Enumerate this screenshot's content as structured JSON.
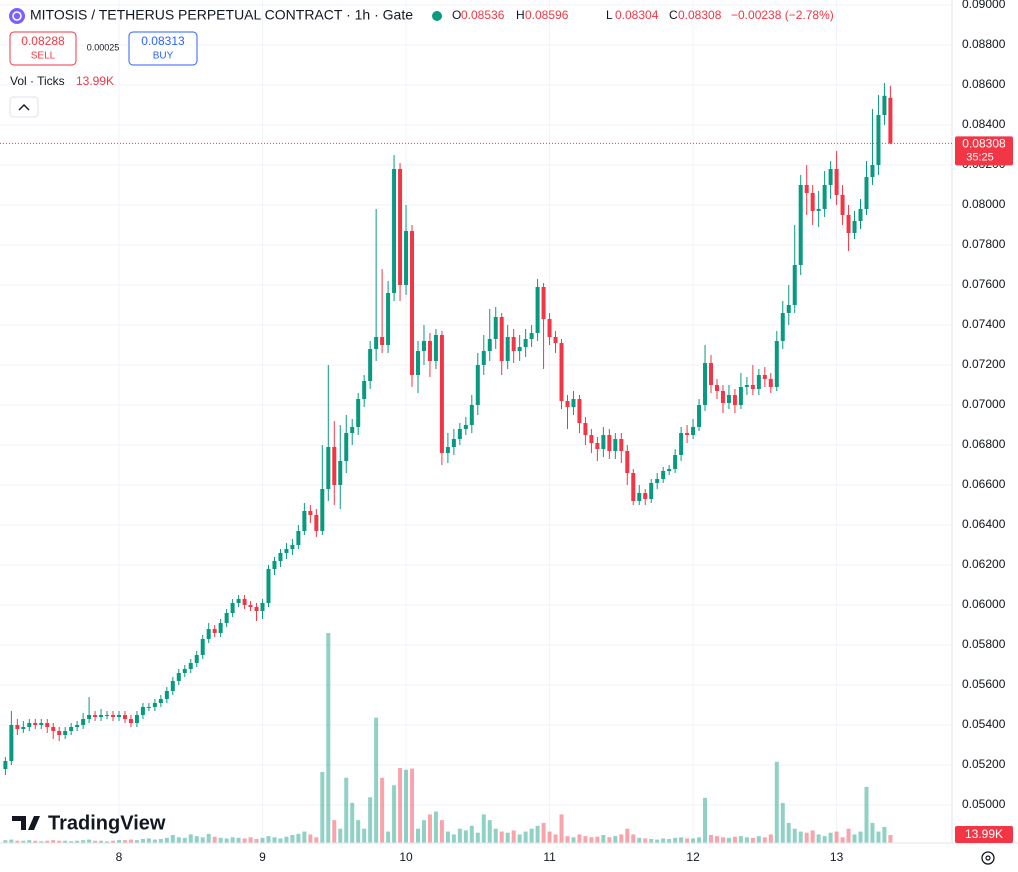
{
  "chart_data": {
    "type": "candlestick",
    "title": "MITOSIS / TETHERUS PERPETUAL CONTRACT · 1h · Gate",
    "ohlc_labels": [
      "O",
      "H",
      "L",
      "C"
    ],
    "change": "−0.00238 (−2.78%)",
    "sell": {
      "price": 0.08288,
      "label": "SELL"
    },
    "spread": 0.00025,
    "buy": {
      "price": 0.08313,
      "label": "BUY"
    },
    "indicator": "Vol · Ticks",
    "countdown": "35:25",
    "brand": "TradingView",
    "up_color": "#089981",
    "down_color": "#f23645",
    "grid": true,
    "x": [
      1,
      2,
      3,
      4,
      5,
      6,
      7,
      8,
      9,
      10,
      11,
      12,
      13,
      14,
      15,
      16,
      17,
      18,
      19,
      20,
      21,
      22,
      23,
      24,
      25,
      26,
      27,
      28,
      29,
      30,
      31,
      32,
      33,
      34,
      35,
      36,
      37,
      38,
      39,
      40,
      41,
      42,
      43,
      44,
      45,
      46,
      47,
      48,
      49,
      50,
      51,
      52,
      53,
      54,
      55,
      56,
      57,
      58,
      59,
      60,
      61,
      62,
      63,
      64,
      65,
      66,
      67,
      68,
      69,
      70,
      71,
      72,
      73,
      74,
      75,
      76,
      77,
      78,
      79,
      80,
      81,
      82,
      83,
      84,
      85,
      86,
      87,
      88,
      89,
      90,
      91,
      92,
      93,
      94,
      95,
      96,
      97,
      98,
      99,
      100,
      101,
      102,
      103,
      104,
      105,
      106,
      107,
      108,
      109,
      110,
      111,
      112,
      113,
      114,
      115,
      116,
      117,
      118,
      119,
      120,
      121,
      122,
      123,
      124,
      125,
      126,
      127,
      128,
      129,
      130,
      131,
      132,
      133,
      134,
      135,
      136,
      137,
      138,
      139,
      140,
      141,
      142,
      143,
      144,
      145,
      146,
      147,
      148,
      149
    ],
    "open": [
      0.0518,
      0.0522,
      0.054,
      0.0538,
      0.0539,
      0.0541,
      0.054,
      0.0541,
      0.0539,
      0.0537,
      0.0535,
      0.0537,
      0.0539,
      0.054,
      0.0543,
      0.0545,
      0.0544,
      0.0545,
      0.0545,
      0.0544,
      0.0545,
      0.0543,
      0.0541,
      0.0545,
      0.0549,
      0.0549,
      0.0551,
      0.0553,
      0.0557,
      0.0562,
      0.0566,
      0.0568,
      0.0571,
      0.0575,
      0.0583,
      0.0588,
      0.0586,
      0.0591,
      0.0596,
      0.0601,
      0.0603,
      0.06,
      0.0599,
      0.0597,
      0.0601,
      0.0618,
      0.0622,
      0.0626,
      0.0628,
      0.063,
      0.0637,
      0.0647,
      0.0645,
      0.0637,
      0.0658,
      0.0679,
      0.066,
      0.0672,
      0.0686,
      0.0689,
      0.0703,
      0.0712,
      0.0728,
      0.0734,
      0.073,
      0.0756,
      0.0818,
      0.076,
      0.0787,
      0.0715,
      0.0727,
      0.0732,
      0.0722,
      0.0735,
      0.0676,
      0.0679,
      0.0683,
      0.0688,
      0.069,
      0.07,
      0.072,
      0.0727,
      0.0733,
      0.0744,
      0.0722,
      0.0734,
      0.0727,
      0.0729,
      0.0733,
      0.0736,
      0.0759,
      0.0743,
      0.0734,
      0.0731,
      0.0702,
      0.0699,
      0.0703,
      0.0691,
      0.0685,
      0.0681,
      0.0678,
      0.0685,
      0.0677,
      0.0683,
      0.0677,
      0.0666,
      0.0652,
      0.0656,
      0.0653,
      0.0661,
      0.0663,
      0.0667,
      0.0668,
      0.0675,
      0.0686,
      0.0685,
      0.0689,
      0.07,
      0.0721,
      0.071,
      0.0707,
      0.0701,
      0.0705,
      0.07,
      0.0709,
      0.071,
      0.0708,
      0.0715,
      0.0713,
      0.0709,
      0.0732,
      0.0746,
      0.075,
      0.077,
      0.081,
      0.0806,
      0.0797,
      0.0798,
      0.081,
      0.0818,
      0.0805,
      0.0795,
      0.0786,
      0.0792,
      0.0798,
      0.0814,
      0.082,
      0.0845,
      0.08536
    ],
    "high": [
      0.0524,
      0.0547,
      0.0543,
      0.0542,
      0.0543,
      0.0543,
      0.0543,
      0.0543,
      0.0541,
      0.0539,
      0.0539,
      0.0541,
      0.0542,
      0.0546,
      0.0554,
      0.0547,
      0.0548,
      0.0547,
      0.0547,
      0.0547,
      0.0547,
      0.0545,
      0.0547,
      0.0551,
      0.0551,
      0.0553,
      0.0555,
      0.0559,
      0.0564,
      0.0568,
      0.057,
      0.0573,
      0.0577,
      0.0585,
      0.0591,
      0.059,
      0.0593,
      0.0598,
      0.0603,
      0.0605,
      0.0605,
      0.0602,
      0.0601,
      0.0603,
      0.062,
      0.0624,
      0.0628,
      0.0631,
      0.0633,
      0.064,
      0.0651,
      0.065,
      0.0648,
      0.068,
      0.072,
      0.0692,
      0.069,
      0.0695,
      0.0693,
      0.0706,
      0.0715,
      0.0732,
      0.0798,
      0.0768,
      0.0762,
      0.0825,
      0.0821,
      0.08,
      0.079,
      0.0732,
      0.074,
      0.0736,
      0.0738,
      0.0737,
      0.0686,
      0.0688,
      0.0691,
      0.0694,
      0.0705,
      0.0726,
      0.0735,
      0.0748,
      0.0749,
      0.0746,
      0.074,
      0.0738,
      0.0735,
      0.0738,
      0.074,
      0.0763,
      0.0761,
      0.0746,
      0.0737,
      0.0733,
      0.0705,
      0.0707,
      0.0705,
      0.0694,
      0.0688,
      0.0684,
      0.0689,
      0.0688,
      0.0686,
      0.0686,
      0.068,
      0.0668,
      0.066,
      0.0658,
      0.0663,
      0.0666,
      0.0669,
      0.067,
      0.0678,
      0.0689,
      0.069,
      0.0693,
      0.0703,
      0.073,
      0.0725,
      0.0713,
      0.071,
      0.071,
      0.0708,
      0.0716,
      0.0714,
      0.072,
      0.0718,
      0.0719,
      0.0716,
      0.0737,
      0.0752,
      0.076,
      0.079,
      0.0815,
      0.082,
      0.081,
      0.0807,
      0.0817,
      0.0822,
      0.0827,
      0.081,
      0.08,
      0.0797,
      0.0803,
      0.0822,
      0.0848,
      0.0855,
      0.0861,
      0.08596
    ],
    "low": [
      0.0515,
      0.052,
      0.0535,
      0.0536,
      0.0537,
      0.0538,
      0.0538,
      0.0536,
      0.0533,
      0.0532,
      0.0533,
      0.0535,
      0.0537,
      0.0538,
      0.0541,
      0.0542,
      0.0542,
      0.0543,
      0.0542,
      0.0542,
      0.0541,
      0.0539,
      0.0539,
      0.0543,
      0.0547,
      0.0547,
      0.0549,
      0.0551,
      0.0555,
      0.056,
      0.0564,
      0.0566,
      0.0569,
      0.0573,
      0.0581,
      0.0584,
      0.0584,
      0.0589,
      0.0594,
      0.0599,
      0.0598,
      0.0597,
      0.0592,
      0.0593,
      0.0599,
      0.0615,
      0.0619,
      0.0623,
      0.0625,
      0.0628,
      0.0635,
      0.0641,
      0.0634,
      0.0635,
      0.0652,
      0.065,
      0.0648,
      0.0666,
      0.068,
      0.0685,
      0.0699,
      0.0708,
      0.0722,
      0.0726,
      0.0726,
      0.0752,
      0.0752,
      0.0755,
      0.0709,
      0.0706,
      0.072,
      0.0714,
      0.0718,
      0.067,
      0.0671,
      0.0675,
      0.068,
      0.0685,
      0.0686,
      0.0695,
      0.0715,
      0.0722,
      0.0728,
      0.0715,
      0.0718,
      0.0721,
      0.0722,
      0.0724,
      0.0729,
      0.0732,
      0.0718,
      0.073,
      0.0726,
      0.0698,
      0.0688,
      0.0695,
      0.0686,
      0.068,
      0.0676,
      0.0672,
      0.0674,
      0.0673,
      0.0673,
      0.0671,
      0.066,
      0.065,
      0.065,
      0.065,
      0.0651,
      0.0658,
      0.0661,
      0.0665,
      0.0666,
      0.0672,
      0.0681,
      0.0683,
      0.0687,
      0.0697,
      0.0706,
      0.0703,
      0.0696,
      0.0698,
      0.0696,
      0.0698,
      0.0705,
      0.0705,
      0.0705,
      0.0709,
      0.0706,
      0.0707,
      0.0728,
      0.074,
      0.0746,
      0.0765,
      0.0795,
      0.079,
      0.0789,
      0.0794,
      0.0803,
      0.08,
      0.079,
      0.0777,
      0.0783,
      0.0788,
      0.0795,
      0.081,
      0.0815,
      0.084,
      0.08304
    ],
    "close": [
      0.0522,
      0.054,
      0.0538,
      0.0539,
      0.0541,
      0.054,
      0.0541,
      0.0539,
      0.0537,
      0.0535,
      0.0537,
      0.0539,
      0.054,
      0.0543,
      0.0545,
      0.0544,
      0.0545,
      0.0545,
      0.0544,
      0.0545,
      0.0543,
      0.0541,
      0.0545,
      0.0549,
      0.0549,
      0.0551,
      0.0553,
      0.0557,
      0.0562,
      0.0566,
      0.0568,
      0.0571,
      0.0575,
      0.0583,
      0.0588,
      0.0586,
      0.0591,
      0.0596,
      0.0601,
      0.0603,
      0.06,
      0.0599,
      0.0597,
      0.0601,
      0.0618,
      0.0622,
      0.0626,
      0.0628,
      0.063,
      0.0637,
      0.0647,
      0.0645,
      0.0637,
      0.0658,
      0.0679,
      0.066,
      0.0672,
      0.0686,
      0.0689,
      0.0703,
      0.0712,
      0.0728,
      0.0734,
      0.073,
      0.0756,
      0.0818,
      0.076,
      0.0787,
      0.0715,
      0.0727,
      0.0732,
      0.0722,
      0.0735,
      0.0676,
      0.0679,
      0.0683,
      0.0688,
      0.069,
      0.07,
      0.072,
      0.0727,
      0.0733,
      0.0744,
      0.0722,
      0.0734,
      0.0727,
      0.0729,
      0.0733,
      0.0736,
      0.0759,
      0.0743,
      0.0734,
      0.0731,
      0.0702,
      0.0699,
      0.0703,
      0.0691,
      0.0685,
      0.0681,
      0.0678,
      0.0685,
      0.0677,
      0.0683,
      0.0677,
      0.0666,
      0.0652,
      0.0656,
      0.0653,
      0.0661,
      0.0663,
      0.0667,
      0.0668,
      0.0675,
      0.0686,
      0.0685,
      0.0689,
      0.07,
      0.0721,
      0.071,
      0.0707,
      0.0701,
      0.0705,
      0.07,
      0.0709,
      0.071,
      0.0708,
      0.0715,
      0.0713,
      0.0709,
      0.0732,
      0.0746,
      0.075,
      0.077,
      0.081,
      0.0806,
      0.0797,
      0.0798,
      0.081,
      0.0818,
      0.0805,
      0.0795,
      0.0786,
      0.0792,
      0.0798,
      0.0814,
      0.082,
      0.0845,
      0.08546,
      0.08308
    ],
    "xlim": [
      0.1,
      159.3
    ],
    "xticks": [
      {
        "value": 20,
        "label": "8"
      },
      {
        "value": 44,
        "label": "9"
      },
      {
        "value": 68,
        "label": "10"
      },
      {
        "value": 92,
        "label": "11"
      },
      {
        "value": 116,
        "label": "12"
      },
      {
        "value": 140,
        "label": "13"
      }
    ],
    "ylim": [
      0.0481,
      0.09025
    ],
    "yticks": [
      {
        "value": 0.05,
        "label": "0.05000"
      },
      {
        "value": 0.052,
        "label": "0.05200"
      },
      {
        "value": 0.054,
        "label": "0.05400"
      },
      {
        "value": 0.056,
        "label": "0.05600"
      },
      {
        "value": 0.058,
        "label": "0.05800"
      },
      {
        "value": 0.06,
        "label": "0.06000"
      },
      {
        "value": 0.062,
        "label": "0.06200"
      },
      {
        "value": 0.064,
        "label": "0.06400"
      },
      {
        "value": 0.066,
        "label": "0.06600"
      },
      {
        "value": 0.068,
        "label": "0.06800"
      },
      {
        "value": 0.07,
        "label": "0.07000"
      },
      {
        "value": 0.072,
        "label": "0.07200"
      },
      {
        "value": 0.074,
        "label": "0.07400"
      },
      {
        "value": 0.076,
        "label": "0.07600"
      },
      {
        "value": 0.078,
        "label": "0.07800"
      },
      {
        "value": 0.08,
        "label": "0.08000"
      },
      {
        "value": 0.082,
        "label": "0.08200"
      },
      {
        "value": 0.084,
        "label": "0.08400"
      },
      {
        "value": 0.086,
        "label": "0.08600"
      },
      {
        "value": 0.088,
        "label": "0.08800"
      },
      {
        "value": 0.09,
        "label": "0.09000"
      }
    ],
    "volume": {
      "values": [
        5000,
        6000,
        4000,
        4000,
        5000,
        4000,
        3000,
        4000,
        5000,
        4000,
        4000,
        3000,
        4000,
        5000,
        6000,
        4000,
        4000,
        3000,
        4000,
        5000,
        5000,
        6000,
        5000,
        7000,
        8000,
        6000,
        7000,
        9000,
        14000,
        10000,
        9000,
        15000,
        12000,
        10000,
        16000,
        11000,
        9000,
        8000,
        10000,
        9000,
        8000,
        10000,
        7000,
        9000,
        12000,
        10000,
        8000,
        11000,
        14000,
        16000,
        20000,
        15000,
        10000,
        124000,
        367000,
        40000,
        25000,
        114000,
        70000,
        40000,
        25000,
        80000,
        219000,
        114000,
        20000,
        101000,
        131000,
        128000,
        130000,
        25000,
        40000,
        50000,
        55000,
        40000,
        20000,
        15000,
        25000,
        22000,
        30000,
        18000,
        50000,
        40000,
        25000,
        20000,
        18000,
        22000,
        15000,
        20000,
        25000,
        30000,
        35000,
        20000,
        15000,
        50000,
        12000,
        10000,
        15000,
        12000,
        10000,
        11000,
        14000,
        10000,
        12000,
        15000,
        25000,
        15000,
        9000,
        8000,
        7000,
        6000,
        8000,
        7000,
        9000,
        10000,
        8000,
        8000,
        10000,
        79000,
        14000,
        12000,
        10000,
        9000,
        11000,
        12000,
        10000,
        9000,
        12000,
        10000,
        15000,
        142000,
        70000,
        35000,
        25000,
        20000,
        18000,
        22000,
        15000,
        12000,
        18000,
        20000,
        10000,
        25000,
        15000,
        20000,
        98000,
        35000,
        20000,
        28000,
        13990
      ],
      "value_labels": [
        null,
        null,
        null,
        null,
        null,
        null,
        null,
        null,
        null,
        null,
        null,
        null,
        null,
        null,
        null,
        null,
        null,
        null,
        null,
        null,
        null,
        null,
        null,
        null,
        null,
        null,
        null,
        null,
        null,
        null,
        null,
        null,
        null,
        null,
        null,
        null,
        null,
        null,
        null,
        null,
        null,
        null,
        null,
        null,
        null,
        null,
        null,
        null,
        null,
        null,
        null,
        null,
        null,
        null,
        null,
        null,
        null,
        null,
        null,
        null,
        null,
        null,
        null,
        null,
        null,
        null,
        null,
        null,
        null,
        null,
        null,
        null,
        null,
        null,
        null,
        null,
        null,
        null,
        null,
        null,
        null,
        null,
        null,
        null,
        null,
        null,
        null,
        null,
        null,
        null,
        null,
        null,
        null,
        null,
        null,
        null,
        null,
        null,
        null,
        null,
        null,
        null,
        null,
        null,
        null,
        null,
        null,
        null,
        null,
        null,
        null,
        null,
        null,
        null,
        null,
        null,
        null,
        null,
        null,
        null,
        null,
        null,
        null,
        null,
        null,
        null,
        null,
        null,
        null,
        null,
        null,
        null,
        null,
        null,
        null,
        null,
        null,
        null,
        null,
        null,
        null,
        null,
        null,
        null,
        null,
        null,
        null,
        null,
        "13.99K"
      ],
      "ylim": [
        0,
        367000
      ]
    }
  }
}
